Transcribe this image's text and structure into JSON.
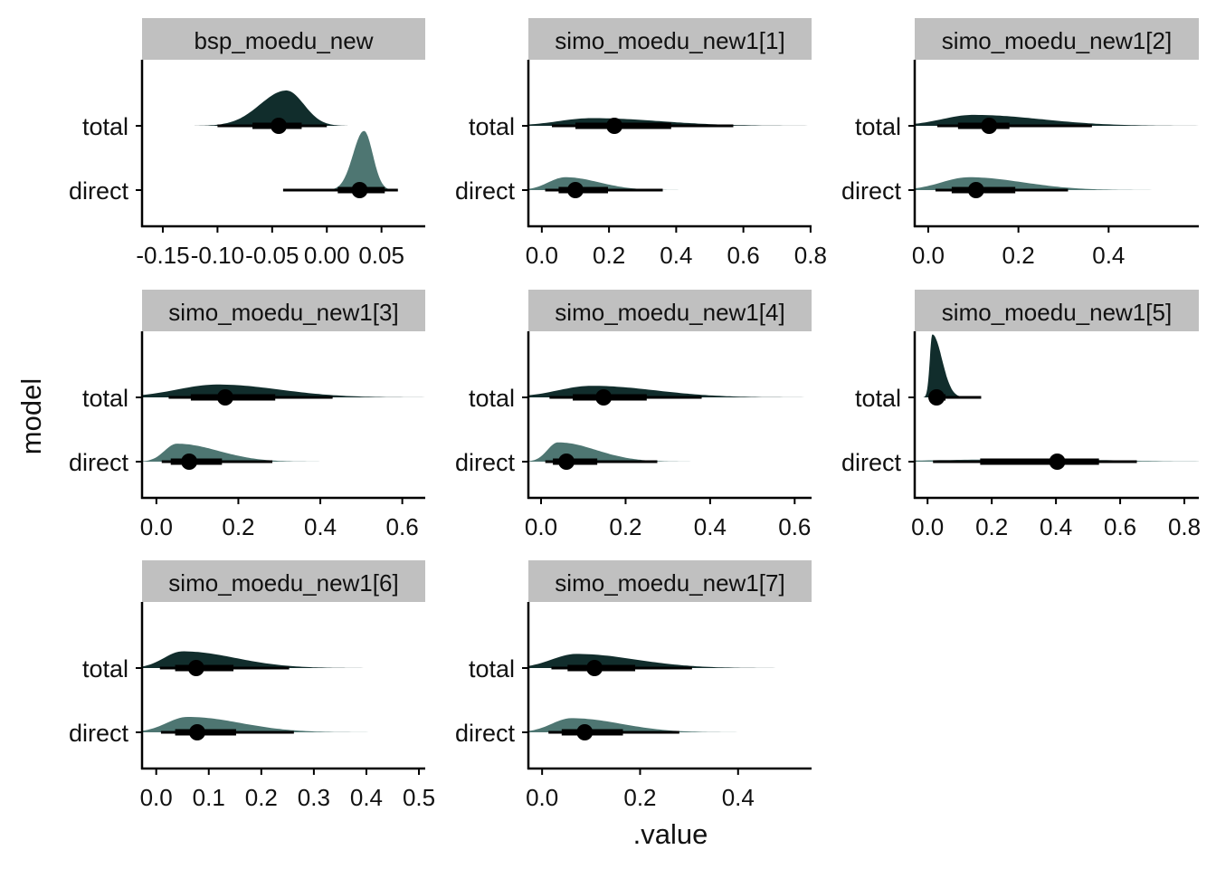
{
  "chart_data": {
    "type": "halfeye",
    "xlabel": ".value",
    "ylabel": "model",
    "categories": [
      "total",
      "direct"
    ],
    "colors": {
      "total": "#112d2c",
      "direct": "#4e7672",
      "strip": "#c0c0c0",
      "point": "#000000"
    },
    "panels": [
      {
        "title": "bsp_moedu_new",
        "xlim": [
          -0.169,
          0.09
        ],
        "ticks": [
          -0.15,
          -0.1,
          -0.05,
          0.0,
          0.05
        ],
        "tick_labels": [
          "-0.15",
          "-0.10",
          "-0.05",
          "0.00",
          "0.05"
        ],
        "series": {
          "total": {
            "median": -0.044,
            "ci66": [
              -0.068,
              -0.023
            ],
            "ci95": [
              -0.1,
              0.0
            ],
            "density": {
              "mode": -0.037,
              "sd_left": 0.024,
              "sd_right": 0.016,
              "peak": 0.55
            }
          },
          "direct": {
            "median": 0.03,
            "ci66": [
              0.01,
              0.053
            ],
            "ci95": [
              -0.04,
              0.065
            ],
            "density": {
              "mode": 0.034,
              "sd_left": 0.01,
              "sd_right": 0.008,
              "peak": 0.92
            }
          }
        }
      },
      {
        "title": "simo_moedu_new1[1]",
        "xlim": [
          -0.04,
          0.803
        ],
        "ticks": [
          0,
          0.2,
          0.4,
          0.6,
          0.8
        ],
        "tick_labels": [
          "0.0",
          "0.2",
          "0.4",
          "0.6",
          "0.8"
        ],
        "series": {
          "total": {
            "median": 0.216,
            "ci66": [
              0.1,
              0.385
            ],
            "ci95": [
              0.03,
              0.57
            ],
            "density": {
              "mode": 0.15,
              "sd_left": 0.1,
              "sd_right": 0.2,
              "peak": 0.12
            }
          },
          "direct": {
            "median": 0.1,
            "ci66": [
              0.05,
              0.197
            ],
            "ci95": [
              0.01,
              0.36
            ],
            "density": {
              "mode": 0.07,
              "sd_left": 0.05,
              "sd_right": 0.1,
              "peak": 0.2
            }
          }
        }
      },
      {
        "title": "simo_moedu_new1[2]",
        "xlim": [
          -0.03,
          0.6
        ],
        "ticks": [
          0,
          0.2,
          0.4
        ],
        "tick_labels": [
          "0.0",
          "0.2",
          "0.4"
        ],
        "series": {
          "total": {
            "median": 0.135,
            "ci66": [
              0.066,
              0.18
            ],
            "ci95": [
              0.02,
              0.363
            ],
            "density": {
              "mode": 0.1,
              "sd_left": 0.07,
              "sd_right": 0.15,
              "peak": 0.17
            }
          },
          "direct": {
            "median": 0.106,
            "ci66": [
              0.052,
              0.193
            ],
            "ci95": [
              0.016,
              0.31
            ],
            "density": {
              "mode": 0.09,
              "sd_left": 0.06,
              "sd_right": 0.12,
              "peak": 0.2
            }
          }
        }
      },
      {
        "title": "simo_moedu_new1[3]",
        "xlim": [
          -0.035,
          0.656
        ],
        "ticks": [
          0,
          0.2,
          0.4,
          0.6
        ],
        "tick_labels": [
          "0.0",
          "0.2",
          "0.4",
          "0.6"
        ],
        "series": {
          "total": {
            "median": 0.168,
            "ci66": [
              0.084,
              0.29
            ],
            "ci95": [
              0.03,
              0.43
            ],
            "density": {
              "mode": 0.15,
              "sd_left": 0.1,
              "sd_right": 0.15,
              "peak": 0.2
            }
          },
          "direct": {
            "median": 0.08,
            "ci66": [
              0.035,
              0.16
            ],
            "ci95": [
              0.013,
              0.283
            ],
            "density": {
              "mode": 0.05,
              "sd_left": 0.03,
              "sd_right": 0.1,
              "peak": 0.28
            }
          }
        }
      },
      {
        "title": "simo_moedu_new1[4]",
        "xlim": [
          -0.03,
          0.64
        ],
        "ticks": [
          0,
          0.2,
          0.4,
          0.6
        ],
        "tick_labels": [
          "0.0",
          "0.2",
          "0.4",
          "0.6"
        ],
        "series": {
          "total": {
            "median": 0.148,
            "ci66": [
              0.075,
              0.25
            ],
            "ci95": [
              0.02,
              0.38
            ],
            "density": {
              "mode": 0.12,
              "sd_left": 0.08,
              "sd_right": 0.15,
              "peak": 0.18
            }
          },
          "direct": {
            "median": 0.06,
            "ci66": [
              0.028,
              0.133
            ],
            "ci95": [
              0.01,
              0.275
            ],
            "density": {
              "mode": 0.04,
              "sd_left": 0.025,
              "sd_right": 0.09,
              "peak": 0.3
            }
          }
        }
      },
      {
        "title": "simo_moedu_new1[5]",
        "xlim": [
          -0.04,
          0.845
        ],
        "ticks": [
          0,
          0.2,
          0.4,
          0.6,
          0.8
        ],
        "tick_labels": [
          "0.0",
          "0.2",
          "0.4",
          "0.6",
          "0.8"
        ],
        "series": {
          "total": {
            "median": 0.028,
            "ci66": [
              0.012,
              0.056
            ],
            "ci95": [
              0.003,
              0.167
            ],
            "density": {
              "mode": 0.015,
              "sd_left": 0.008,
              "sd_right": 0.03,
              "peak": 0.98
            }
          },
          "direct": {
            "median": 0.404,
            "ci66": [
              0.164,
              0.534
            ],
            "ci95": [
              0.017,
              0.652
            ],
            "density": {
              "mode": 0.35,
              "sd_left": 0.3,
              "sd_right": 0.2,
              "peak": 0.04
            }
          }
        }
      },
      {
        "title": "simo_moedu_new1[6]",
        "xlim": [
          -0.027,
          0.512
        ],
        "ticks": [
          0,
          0.1,
          0.2,
          0.3,
          0.4,
          0.5
        ],
        "tick_labels": [
          "0.0",
          "0.1",
          "0.2",
          "0.3",
          "0.4",
          "0.5"
        ],
        "series": {
          "total": {
            "median": 0.076,
            "ci66": [
              0.036,
              0.147
            ],
            "ci95": [
              0.007,
              0.253
            ],
            "density": {
              "mode": 0.05,
              "sd_left": 0.035,
              "sd_right": 0.1,
              "peak": 0.26
            }
          },
          "direct": {
            "median": 0.078,
            "ci66": [
              0.036,
              0.152
            ],
            "ci95": [
              0.009,
              0.262
            ],
            "density": {
              "mode": 0.06,
              "sd_left": 0.04,
              "sd_right": 0.1,
              "peak": 0.24
            }
          }
        }
      },
      {
        "title": "simo_moedu_new1[7]",
        "xlim": [
          -0.028,
          0.55
        ],
        "ticks": [
          0,
          0.2,
          0.4
        ],
        "tick_labels": [
          "0.0",
          "0.2",
          "0.4"
        ],
        "series": {
          "total": {
            "median": 0.107,
            "ci66": [
              0.052,
              0.19
            ],
            "ci95": [
              0.019,
              0.306
            ],
            "density": {
              "mode": 0.07,
              "sd_left": 0.05,
              "sd_right": 0.12,
              "peak": 0.22
            }
          },
          "direct": {
            "median": 0.087,
            "ci66": [
              0.04,
              0.165
            ],
            "ci95": [
              0.013,
              0.28
            ],
            "density": {
              "mode": 0.06,
              "sd_left": 0.04,
              "sd_right": 0.1,
              "peak": 0.22
            }
          }
        }
      }
    ]
  }
}
